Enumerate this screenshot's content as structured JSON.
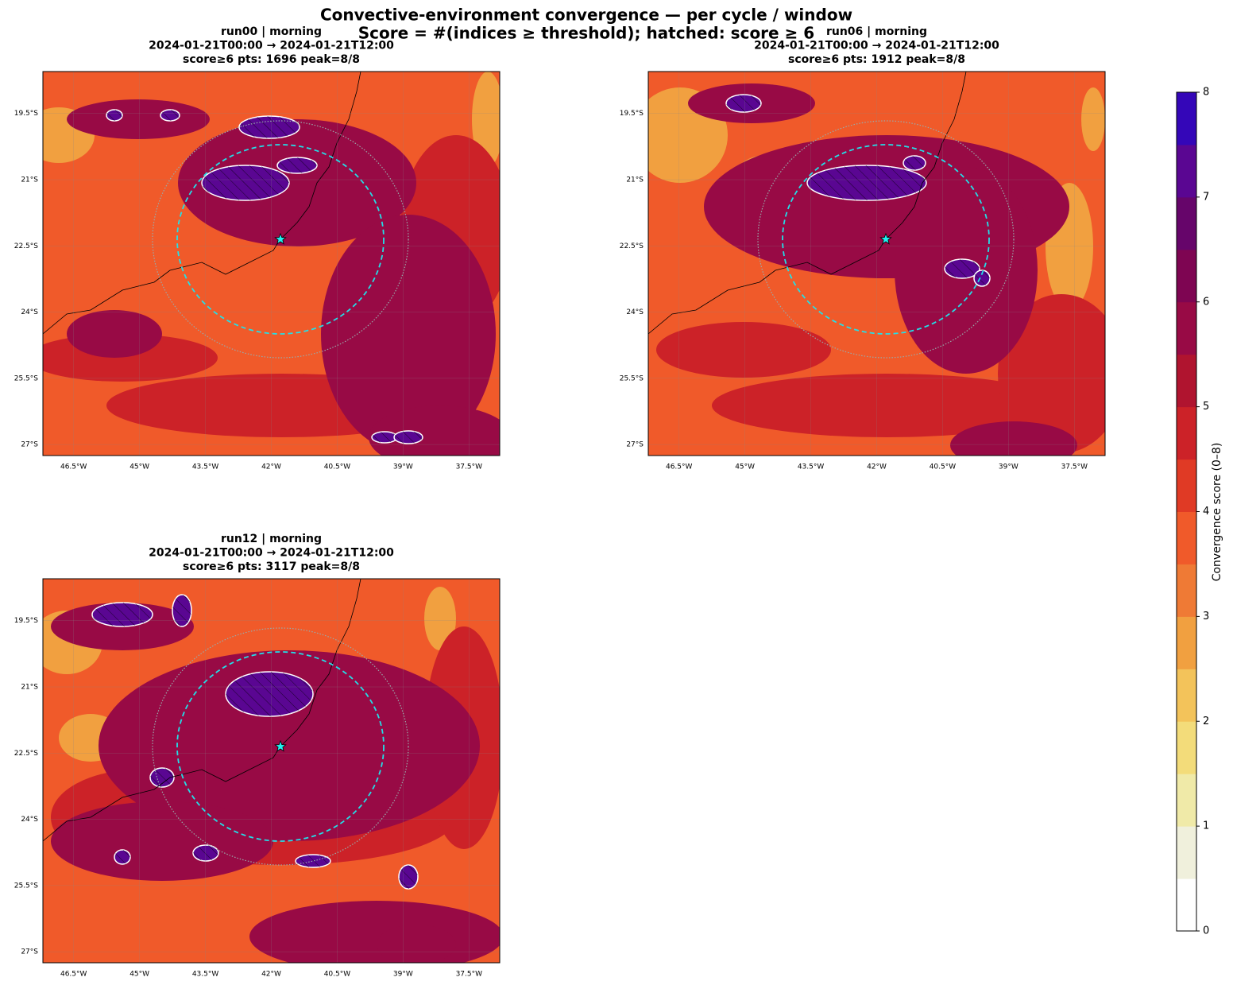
{
  "title": "Convective-environment convergence — per cycle / window",
  "subtitle": "Score = #(indices ≥ threshold);  hatched: score ≥ 6",
  "lonlim": [
    -47.2,
    -36.8
  ],
  "latlim": [
    -27.25,
    -18.55
  ],
  "lon_ticks": [
    {
      "value": -46.5,
      "label": "46.5°W"
    },
    {
      "value": -45,
      "label": "45°W"
    },
    {
      "value": -43.5,
      "label": "43.5°W"
    },
    {
      "value": -42,
      "label": "42°W"
    },
    {
      "value": -40.5,
      "label": "40.5°W"
    },
    {
      "value": -39,
      "label": "39°W"
    },
    {
      "value": -37.5,
      "label": "37.5°W"
    }
  ],
  "lat_ticks": [
    {
      "value": -19.5,
      "label": "19.5°S"
    },
    {
      "value": -21,
      "label": "21°S"
    },
    {
      "value": -22.5,
      "label": "22.5°S"
    },
    {
      "value": -24,
      "label": "24°S"
    },
    {
      "value": -25.5,
      "label": "25.5°S"
    },
    {
      "value": -27,
      "label": "27°S"
    }
  ],
  "panels": [
    {
      "title_lines": [
        "run00  |  morning",
        "2024-01-21T00:00 → 2024-01-21T12:00",
        "score≥6 pts: 1696    peak=8/8"
      ]
    },
    {
      "title_lines": [
        "run06  |  morning",
        "2024-01-21T00:00 → 2024-01-21T12:00",
        "score≥6 pts: 1912    peak=8/8"
      ]
    },
    {
      "title_lines": [
        "run12  |  morning",
        "2024-01-21T00:00 → 2024-01-21T12:00",
        "score≥6 pts: 3117    peak=8/8"
      ]
    }
  ],
  "colorbar": {
    "label": "Convergence score (0–8)",
    "lim": [
      0,
      8
    ],
    "ticks": [
      0,
      1,
      2,
      3,
      4,
      5,
      6,
      7,
      8
    ],
    "colors": [
      "#ffffff",
      "#f0f0dc",
      "#f0eaa8",
      "#f3dc7a",
      "#f3c35a",
      "#f1a040",
      "#ef7a35",
      "#f05a2a",
      "#e03a25",
      "#cc2228",
      "#b0142f",
      "#980a45",
      "#7e0552",
      "#66056a",
      "#5a0692",
      "#3406b8"
    ]
  }
}
